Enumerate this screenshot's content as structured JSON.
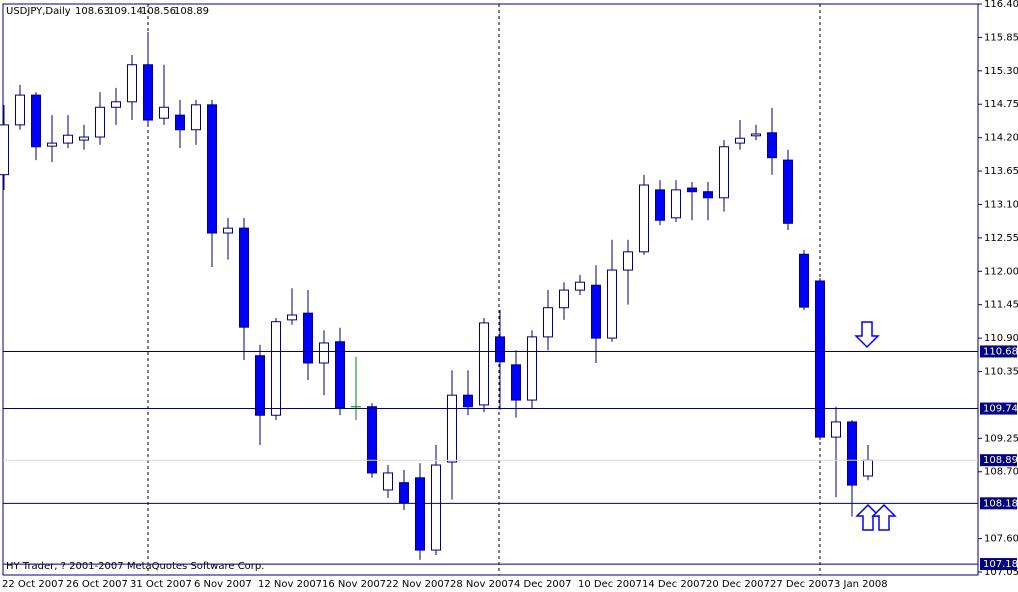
{
  "chart_data": {
    "type": "candlestick",
    "title": "USDJPY,Daily",
    "quote": [
      "108.63",
      "109.14",
      "108.56",
      "108.89"
    ],
    "footer": "HY Trader, ? 2001-2007 MetaQuotes Software Corp.",
    "categories": [
      "22 Oct 2007",
      null,
      null,
      null,
      "26 Oct 2007",
      null,
      null,
      null,
      "31 Oct 2007",
      null,
      null,
      null,
      "6 Nov 2007",
      null,
      null,
      null,
      "12 Nov 2007",
      null,
      null,
      null,
      "16 Nov 2007",
      null,
      null,
      null,
      "22 Nov 2007",
      null,
      null,
      null,
      "28 Nov 2007",
      null,
      null,
      null,
      "4 Dec 2007",
      null,
      null,
      null,
      "10 Dec 2007",
      null,
      null,
      null,
      "14 Dec 2007",
      null,
      null,
      null,
      "20 Dec 2007",
      null,
      null,
      null,
      "27 Dec 2007",
      null,
      null,
      null,
      "3 Jan 2008",
      null,
      null
    ],
    "open": [
      113.59,
      114.41,
      114.9,
      114.06,
      114.11,
      114.16,
      114.21,
      114.7,
      114.79,
      115.4,
      114.52,
      114.57,
      114.33,
      114.74,
      112.63,
      112.71,
      110.61,
      109.63,
      111.2,
      111.31,
      110.49,
      110.84,
      109.77,
      109.77,
      108.4,
      108.52,
      108.6,
      107.41,
      108.86,
      109.96,
      109.8,
      110.92,
      110.46,
      109.88,
      110.92,
      111.4,
      111.69,
      111.77,
      110.9,
      112.02,
      112.32,
      113.34,
      112.88,
      113.37,
      113.31,
      113.21,
      114.11,
      114.23,
      114.28,
      113.83,
      112.28,
      111.84,
      109.27,
      109.52,
      108.63
    ],
    "high": [
      114.74,
      115.07,
      114.95,
      114.57,
      114.57,
      114.41,
      114.95,
      115.02,
      115.56,
      115.94,
      115.4,
      114.82,
      114.82,
      114.82,
      112.88,
      112.88,
      110.79,
      111.23,
      111.72,
      111.69,
      111.03,
      111.07,
      110.59,
      109.83,
      108.81,
      108.73,
      108.84,
      109.14,
      110.37,
      110.37,
      111.23,
      111.36,
      110.7,
      111.03,
      111.69,
      111.82,
      111.94,
      112.1,
      112.52,
      112.52,
      113.59,
      113.5,
      113.5,
      113.47,
      113.47,
      114.16,
      114.49,
      114.41,
      114.69,
      114.0,
      112.35,
      111.89,
      109.77,
      109.55,
      109.14
    ],
    "low": [
      113.34,
      114.33,
      113.83,
      113.8,
      114.03,
      114.0,
      114.08,
      114.41,
      114.49,
      114.41,
      114.41,
      114.03,
      114.08,
      112.07,
      112.19,
      110.54,
      109.14,
      109.55,
      111.12,
      110.21,
      109.96,
      109.63,
      109.55,
      108.6,
      108.27,
      108.07,
      107.25,
      107.33,
      108.24,
      109.63,
      109.68,
      109.72,
      109.59,
      109.75,
      110.7,
      111.2,
      111.61,
      110.49,
      110.84,
      111.45,
      112.27,
      112.76,
      112.81,
      112.84,
      112.84,
      112.98,
      114.0,
      114.16,
      113.59,
      112.68,
      111.36,
      109.22,
      108.28,
      107.96,
      108.56
    ],
    "close": [
      114.41,
      114.9,
      114.05,
      114.11,
      114.24,
      114.21,
      114.7,
      114.79,
      115.4,
      114.49,
      114.7,
      114.33,
      114.74,
      112.63,
      112.71,
      111.08,
      109.63,
      111.17,
      111.28,
      110.49,
      110.82,
      109.75,
      109.77,
      108.68,
      108.68,
      108.19,
      107.41,
      108.81,
      109.96,
      109.77,
      111.15,
      110.51,
      109.88,
      110.92,
      111.4,
      111.69,
      111.82,
      110.9,
      112.02,
      112.32,
      113.42,
      112.84,
      113.34,
      113.31,
      113.21,
      114.05,
      114.19,
      114.26,
      113.87,
      112.79,
      111.41,
      109.27,
      109.52,
      108.48,
      108.89
    ],
    "ylim": [
      107.0,
      116.4
    ],
    "yticks": [
      {
        "value": 116.4,
        "label": "116.40"
      },
      115.85,
      {
        "value": 115.3,
        "label": "115.30"
      },
      114.75,
      {
        "value": 114.2,
        "label": "114.20"
      },
      113.65,
      {
        "value": 113.1,
        "label": "113.10"
      },
      112.55,
      {
        "value": 112.0,
        "label": "112.00"
      },
      111.45,
      {
        "value": 110.9,
        "label": "110.90"
      },
      110.35,
      109.25,
      {
        "value": 108.7,
        "label": "108.70"
      },
      {
        "value": 107.6,
        "label": "107.60"
      },
      107.05
    ],
    "hlines": [
      110.68,
      109.74,
      108.18,
      107.18
    ],
    "last_price": 108.89,
    "colors": {
      "bull": "#ffffff",
      "bear": "#0000ff",
      "outline": "#000080",
      "doji": "#008000"
    }
  }
}
